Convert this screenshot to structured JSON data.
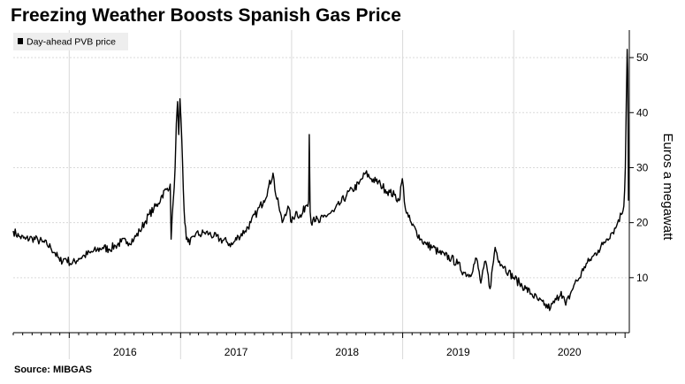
{
  "header": {
    "title": "Freezing Weather Boosts Spanish Gas Price"
  },
  "footer": {
    "source": "Source: MIBGAS"
  },
  "chart_data": {
    "type": "line",
    "title": "Freezing Weather Boosts Spanish Gas Price",
    "xlabel": "",
    "ylabel": "Euros a megawatt",
    "ylim": [
      0,
      55
    ],
    "yticks": [
      10,
      20,
      30,
      40,
      50
    ],
    "x_categories": [
      "2016",
      "2017",
      "2018",
      "2019",
      "2020"
    ],
    "xlim": [
      "2015-07-01",
      "2021-01-15"
    ],
    "y_axis_side": "right",
    "grid": true,
    "legend": {
      "position": "top-left",
      "entries": [
        "Day-ahead PVB price"
      ]
    },
    "series_color": "#000000",
    "series": [
      {
        "name": "Day-ahead PVB price",
        "x": [
          "2015-07-01",
          "2015-07-20",
          "2015-08-10",
          "2015-09-01",
          "2015-09-20",
          "2015-10-05",
          "2015-10-20",
          "2015-11-01",
          "2015-11-15",
          "2015-12-01",
          "2015-12-20",
          "2016-01-10",
          "2016-02-01",
          "2016-02-20",
          "2016-03-10",
          "2016-04-01",
          "2016-04-20",
          "2016-05-10",
          "2016-06-01",
          "2016-06-20",
          "2016-07-10",
          "2016-08-01",
          "2016-08-20",
          "2016-09-05",
          "2016-09-20",
          "2016-10-05",
          "2016-10-20",
          "2016-11-01",
          "2016-11-15",
          "2016-11-28",
          "2016-12-01",
          "2016-12-08",
          "2016-12-14",
          "2016-12-18",
          "2016-12-22",
          "2016-12-26",
          "2016-12-30",
          "2017-01-05",
          "2017-01-10",
          "2017-01-15",
          "2017-01-20",
          "2017-01-25",
          "2017-01-31",
          "2017-02-10",
          "2017-02-20",
          "2017-03-05",
          "2017-03-20",
          "2017-04-05",
          "2017-04-20",
          "2017-05-10",
          "2017-06-01",
          "2017-06-20",
          "2017-07-10",
          "2017-08-01",
          "2017-08-20",
          "2017-09-10",
          "2017-10-01",
          "2017-10-15",
          "2017-11-01",
          "2017-11-10",
          "2017-11-20",
          "2017-12-01",
          "2017-12-10",
          "2017-12-20",
          "2018-01-01",
          "2018-01-15",
          "2018-02-01",
          "2018-02-15",
          "2018-02-26",
          "2018-02-28",
          "2018-03-03",
          "2018-03-06",
          "2018-03-15",
          "2018-04-01",
          "2018-04-15",
          "2018-05-01",
          "2018-05-20",
          "2018-06-10",
          "2018-07-01",
          "2018-07-20",
          "2018-08-10",
          "2018-09-01",
          "2018-09-20",
          "2018-10-05",
          "2018-10-20",
          "2018-11-05",
          "2018-11-20",
          "2018-12-05",
          "2018-12-20",
          "2018-12-31",
          "2019-01-10",
          "2019-01-20",
          "2019-02-01",
          "2019-02-15",
          "2019-03-01",
          "2019-03-20",
          "2019-04-10",
          "2019-05-01",
          "2019-05-20",
          "2019-06-10",
          "2019-07-01",
          "2019-07-20",
          "2019-08-10",
          "2019-09-01",
          "2019-09-15",
          "2019-10-01",
          "2019-10-15",
          "2019-11-01",
          "2019-11-15",
          "2019-12-01",
          "2019-12-15",
          "2020-01-01",
          "2020-01-20",
          "2020-02-10",
          "2020-03-01",
          "2020-03-20",
          "2020-04-10",
          "2020-05-01",
          "2020-05-20",
          "2020-06-05",
          "2020-06-20",
          "2020-07-05",
          "2020-07-20",
          "2020-08-05",
          "2020-08-20",
          "2020-09-05",
          "2020-09-20",
          "2020-10-05",
          "2020-10-20",
          "2020-11-01",
          "2020-11-15",
          "2020-12-01",
          "2020-12-10",
          "2020-12-20",
          "2020-12-28",
          "2021-01-02",
          "2021-01-05",
          "2021-01-08",
          "2021-01-10",
          "2021-01-12"
        ],
        "values": [
          18.5,
          17.5,
          17.0,
          17.2,
          16.8,
          16.5,
          16.0,
          15.5,
          14.5,
          13.0,
          13.5,
          12.5,
          13.5,
          14.0,
          14.5,
          15.0,
          15.5,
          15.2,
          15.8,
          16.5,
          16.5,
          17.0,
          18.5,
          20.0,
          21.5,
          22.5,
          23.5,
          25.0,
          26.0,
          27.0,
          17.0,
          24.0,
          30.0,
          38.0,
          42.0,
          36.0,
          42.5,
          35.0,
          26.0,
          20.0,
          17.0,
          16.5,
          16.0,
          17.5,
          18.0,
          17.8,
          18.2,
          18.0,
          17.5,
          17.0,
          16.5,
          16.0,
          17.5,
          18.5,
          20.0,
          22.0,
          24.0,
          26.0,
          29.0,
          25.0,
          23.0,
          20.0,
          21.5,
          23.0,
          20.0,
          22.0,
          21.0,
          23.0,
          24.0,
          36.0,
          22.0,
          20.0,
          21.0,
          20.0,
          21.0,
          21.5,
          22.0,
          23.5,
          25.0,
          26.0,
          27.0,
          29.0,
          28.0,
          27.5,
          27.0,
          26.0,
          25.5,
          25.0,
          24.0,
          28.0,
          22.5,
          21.0,
          19.5,
          18.5,
          17.0,
          16.0,
          15.5,
          14.5,
          14.0,
          13.5,
          12.5,
          11.0,
          10.5,
          13.5,
          9.0,
          13.0,
          8.0,
          15.5,
          13.0,
          12.0,
          11.0,
          10.0,
          9.0,
          8.0,
          7.0,
          6.0,
          5.0,
          4.5,
          6.0,
          7.5,
          5.0,
          7.0,
          9.0,
          10.0,
          12.0,
          13.0,
          14.0,
          15.0,
          16.0,
          17.0,
          18.0,
          19.0,
          20.5,
          21.5,
          23.0,
          30.0,
          42.0,
          51.5,
          47.0,
          24.0
        ]
      }
    ]
  }
}
